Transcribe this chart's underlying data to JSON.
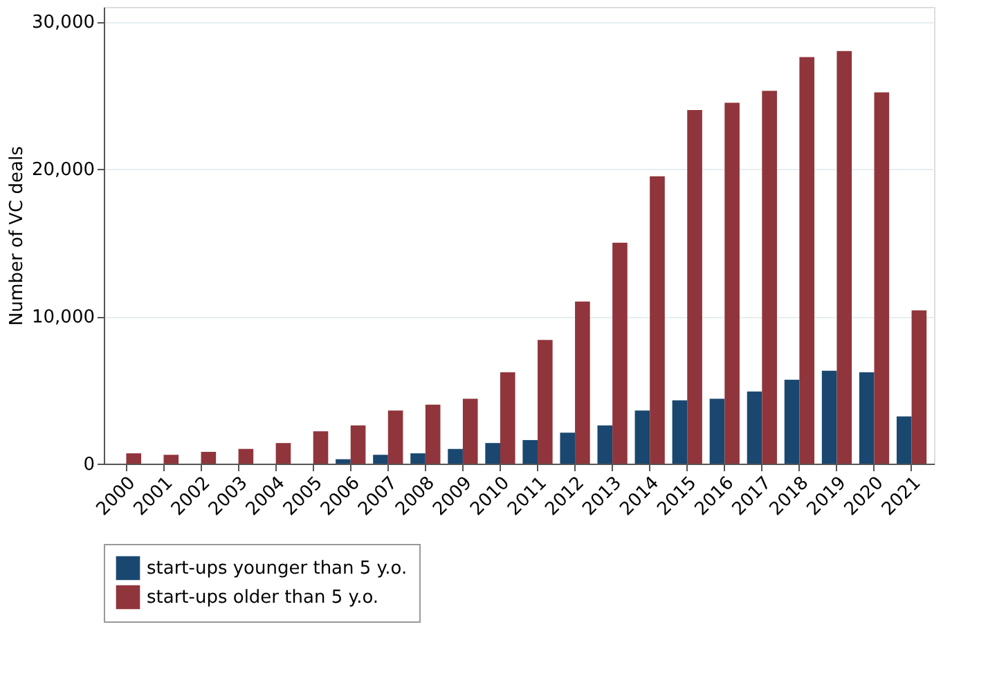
{
  "chart_data": {
    "type": "bar",
    "ylabel": "Number of VC deals",
    "categories": [
      "2000",
      "2001",
      "2002",
      "2003",
      "2004",
      "2005",
      "2006",
      "2007",
      "2008",
      "2009",
      "2010",
      "2011",
      "2012",
      "2013",
      "2014",
      "2015",
      "2016",
      "2017",
      "2018",
      "2019",
      "2020",
      "2021"
    ],
    "series": [
      {
        "name": "start-ups younger than 5 y.o.",
        "color": "#1a476f",
        "values": [
          0,
          0,
          0,
          0,
          0,
          0,
          300,
          600,
          700,
          1000,
          1400,
          1600,
          2100,
          2600,
          3600,
          4300,
          4400,
          4900,
          5700,
          6300,
          6200,
          3200
        ]
      },
      {
        "name": "start-ups older than 5 y.o.",
        "color": "#90353b",
        "values": [
          700,
          600,
          800,
          1000,
          1400,
          2200,
          2600,
          3600,
          4000,
          4400,
          6200,
          8400,
          11000,
          15000,
          19500,
          24000,
          24500,
          25300,
          27600,
          28000,
          25200,
          10400
        ]
      }
    ],
    "ylim": [
      0,
      31000
    ],
    "yticks": [
      0,
      {
        "value": 10000,
        "label": "10,000"
      },
      {
        "value": 20000,
        "label": "20,000"
      },
      {
        "value": 30000,
        "label": "30,000"
      }
    ],
    "grid": "y",
    "legend": "bottom"
  }
}
